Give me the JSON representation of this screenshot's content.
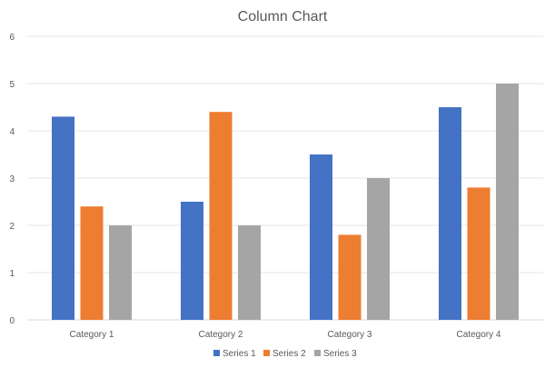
{
  "chart_data": {
    "type": "bar",
    "title": "Column Chart",
    "xlabel": "",
    "ylabel": "",
    "ylim": [
      0,
      6
    ],
    "yticks": [
      0,
      1,
      2,
      3,
      4,
      5,
      6
    ],
    "grid": true,
    "legend_position": "bottom",
    "categories": [
      "Category 1",
      "Category 2",
      "Category 3",
      "Category 4"
    ],
    "series": [
      {
        "name": "Series 1",
        "color": "#4472C4",
        "values": [
          4.3,
          2.5,
          3.5,
          4.5
        ]
      },
      {
        "name": "Series 2",
        "color": "#ED7D31",
        "values": [
          2.4,
          4.4,
          1.8,
          2.8
        ]
      },
      {
        "name": "Series 3",
        "color": "#A5A5A5",
        "values": [
          2,
          2,
          3,
          5
        ]
      }
    ]
  }
}
